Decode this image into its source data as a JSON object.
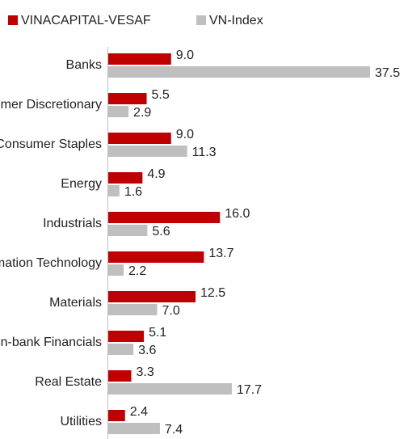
{
  "chart_data": {
    "type": "hbar",
    "categories": [
      "Banks",
      "Consumer Discretionary",
      "Consumer Staples",
      "Energy",
      "Industrials",
      "Information Technology",
      "Materials",
      "Non-bank Financials",
      "Real Estate",
      "Utilities"
    ],
    "series": [
      {
        "name": "VINACAPITAL-VESAF",
        "color": "#c00000",
        "values": [
          9.0,
          5.5,
          9.0,
          4.9,
          16.0,
          13.7,
          12.5,
          5.1,
          3.3,
          2.4
        ],
        "value_labels": [
          "9.0",
          "5.5",
          "9.0",
          "4.9",
          "16.0",
          "13.7",
          "12.5",
          "5.1",
          "3.3",
          "2.4"
        ]
      },
      {
        "name": "VN-Index",
        "color": "#bfbfbf",
        "values": [
          37.5,
          2.9,
          11.3,
          1.6,
          5.6,
          2.2,
          7.0,
          3.6,
          17.7,
          7.4
        ],
        "value_labels": [
          "37.5",
          "2.9",
          "11.3",
          "1.6",
          "5.6",
          "2.2",
          "7.0",
          "3.6",
          "17.7",
          "7.4"
        ]
      }
    ],
    "legend": "top"
  }
}
